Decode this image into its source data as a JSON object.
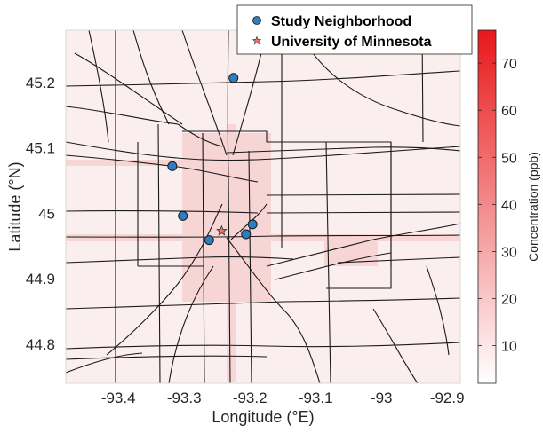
{
  "chart_data": {
    "type": "map",
    "xlabel": "Longitude (°E)",
    "ylabel": "Latitude (°N)",
    "xlim": [
      -93.48,
      -92.88
    ],
    "ylim": [
      44.74,
      45.28
    ],
    "xticks": [
      "-93.4",
      "-93.3",
      "-93.2",
      "-93.1",
      "-93",
      "-92.9"
    ],
    "xtick_values": [
      -93.4,
      -93.3,
      -93.2,
      -93.1,
      -93.0,
      -92.9
    ],
    "yticks": [
      "44.8",
      "44.9",
      "45",
      "45.1",
      "45.2"
    ],
    "ytick_values": [
      44.8,
      44.9,
      45.0,
      45.1,
      45.2
    ],
    "colorbar": {
      "label": "Concentration (ppb)",
      "range": [
        2,
        77
      ],
      "ticks": [
        "10",
        "20",
        "30",
        "40",
        "50",
        "60",
        "70"
      ],
      "tick_values": [
        10,
        20,
        30,
        40,
        50,
        60,
        70
      ],
      "color_low": "#ffffff",
      "color_high": "#e8181a"
    },
    "legend": {
      "placement": "top-right",
      "items": [
        {
          "label": "Study Neighborhood",
          "marker": "circle",
          "color": "#2d7dc1"
        },
        {
          "label": "University of Minnesota",
          "marker": "star",
          "color": "#e87a6a"
        }
      ]
    },
    "series": [
      {
        "name": "Study Neighborhood",
        "points": [
          {
            "lon": -93.225,
            "lat": 45.207
          },
          {
            "lon": -93.318,
            "lat": 45.072
          },
          {
            "lon": -93.302,
            "lat": 44.996
          },
          {
            "lon": -93.196,
            "lat": 44.983
          },
          {
            "lon": -93.206,
            "lat": 44.968
          },
          {
            "lon": -93.262,
            "lat": 44.959
          }
        ]
      },
      {
        "name": "University of Minnesota",
        "points": [
          {
            "lon": -93.243,
            "lat": 44.973
          }
        ]
      }
    ]
  }
}
